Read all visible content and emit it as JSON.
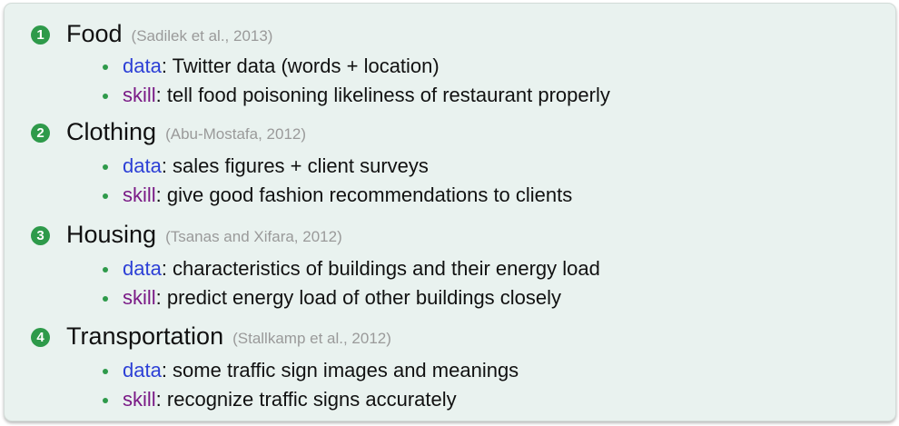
{
  "items": [
    {
      "number": "1",
      "title": "Food",
      "citation": "(Sadilek et al., 2013)",
      "data_label": "data",
      "data_text": ": Twitter data (words + location)",
      "skill_label": "skill",
      "skill_text": ": tell food poisoning likeliness of restaurant properly"
    },
    {
      "number": "2",
      "title": "Clothing",
      "citation": "(Abu-Mostafa, 2012)",
      "data_label": "data",
      "data_text": ": sales figures + client surveys",
      "skill_label": "skill",
      "skill_text": ": give good fashion recommendations to clients"
    },
    {
      "number": "3",
      "title": "Housing",
      "citation": "(Tsanas and Xifara, 2012)",
      "data_label": "data",
      "data_text": ": characteristics of buildings and their energy load",
      "skill_label": "skill",
      "skill_text": ": predict energy load of other buildings closely"
    },
    {
      "number": "4",
      "title": "Transportation",
      "citation": "(Stallkamp et al., 2012)",
      "data_label": "data",
      "data_text": ": some traffic sign images and meanings",
      "skill_label": "skill",
      "skill_text": ": recognize traffic signs accurately"
    }
  ],
  "colors": {
    "panel_background": "#e9f2ef",
    "number_badge": "#2e9a4a",
    "bullet_dot": "#2e9a4a",
    "data_keyword": "#2c3fd6",
    "skill_keyword": "#7a1a86",
    "citation": "#9a9a9a"
  }
}
